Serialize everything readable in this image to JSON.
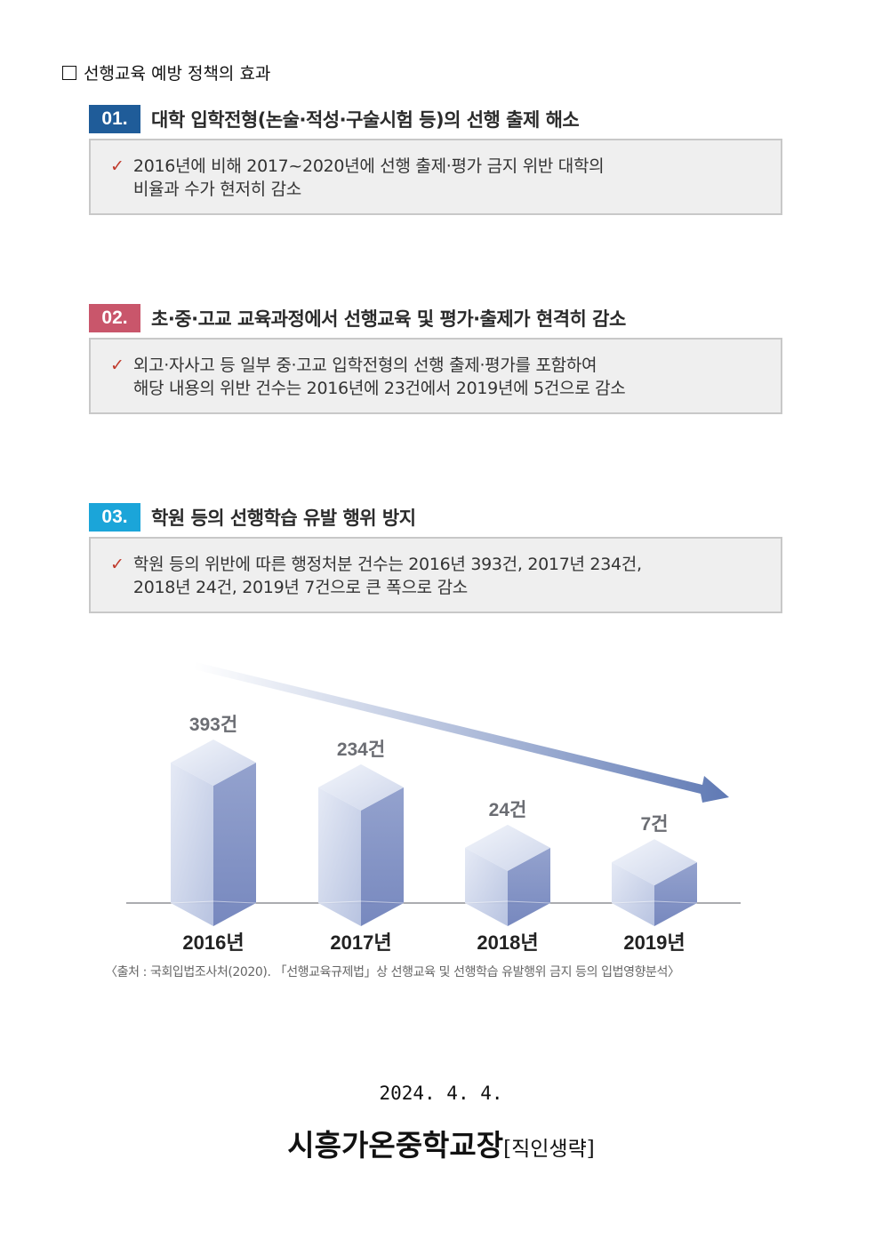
{
  "heading": "선행교육 예방 정책의 효과",
  "sections": [
    {
      "num": "01.",
      "color": "#1f5c99",
      "title": "대학 입학전형(논술·적성·구술시험 등)의 선행 출제 해소",
      "lines": [
        "2016년에 비해 2017~2020년에 선행 출제·평가 금지 위반 대학의",
        "비율과 수가 현저히 감소"
      ]
    },
    {
      "num": "02.",
      "color": "#c9566b",
      "title": "초·중·고교 교육과정에서 선행교육 및 평가·출제가 현격히 감소",
      "lines": [
        "외고·자사고 등 일부 중·고교 입학전형의 선행 출제·평가를 포함하여",
        "해당 내용의 위반 건수는 2016년에 23건에서 2019년에 5건으로 감소"
      ]
    },
    {
      "num": "03.",
      "color": "#1ba5d9",
      "title": "학원 등의 선행학습 유발 행위 방지",
      "lines": [
        "학원 등의 위반에 따른 행정처분 건수는 2016년 393건, 2017년 234건,",
        "2018년 24건, 2019년 7건으로 큰 폭으로 감소"
      ]
    }
  ],
  "chart_data": {
    "type": "bar",
    "categories": [
      "2016년",
      "2017년",
      "2018년",
      "2019년"
    ],
    "values": [
      393,
      234,
      24,
      7
    ],
    "data_labels": [
      "393건",
      "234건",
      "24건",
      "7건"
    ],
    "trend_arrow": "decreasing"
  },
  "source": "〈출처 : 국회입법조사처(2020). 「선행교육규제법」상 선행교육 및 선행학습 유발행위 금지 등의 입법영향분석〉",
  "date": "2024. 4. 4.",
  "signer": "시흥가온중학교장",
  "seal": "[직인생략]"
}
